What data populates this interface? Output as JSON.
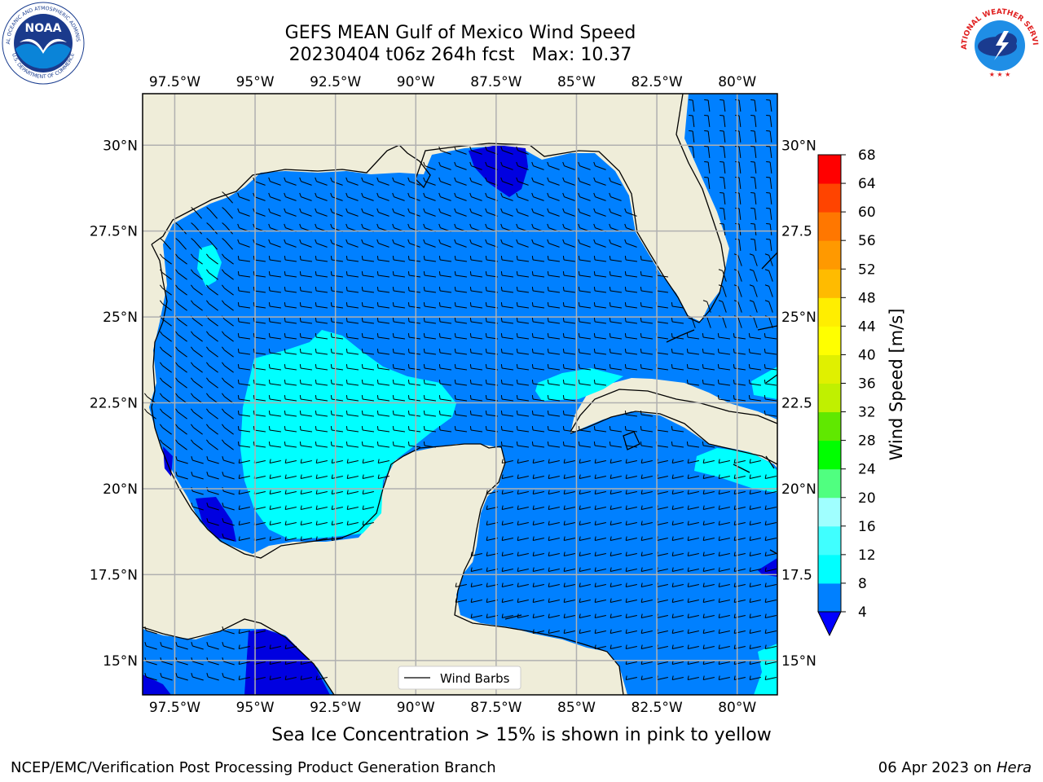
{
  "header": {
    "title_line1": "GEFS MEAN Gulf of Mexico Wind Speed",
    "title_line2": "20230404 t06z 264h fcst   Max: 10.37"
  },
  "logos": {
    "left": {
      "name": "noaa-logo",
      "text": "NOAA",
      "ring_top": "NATIONAL OCEANIC AND ATMOSPHERIC ADMINISTRATION",
      "ring_bottom": "U.S. DEPARTMENT OF COMMERCE"
    },
    "right": {
      "name": "nws-logo",
      "ring_top": "NATIONAL WEATHER SERVICE"
    }
  },
  "map": {
    "lon_range": [
      -98.5,
      -78.75
    ],
    "lat_range": [
      14,
      31.5
    ],
    "lon_ticks": [
      {
        "value": -97.5,
        "label": "97.5°W"
      },
      {
        "value": -95,
        "label": "95°W"
      },
      {
        "value": -92.5,
        "label": "92.5°W"
      },
      {
        "value": -90,
        "label": "90°W"
      },
      {
        "value": -87.5,
        "label": "87.5°W"
      },
      {
        "value": -85,
        "label": "85°W"
      },
      {
        "value": -82.5,
        "label": "82.5°W"
      },
      {
        "value": -80,
        "label": "80°W"
      }
    ],
    "lat_ticks": [
      {
        "value": 30,
        "label": "30°N"
      },
      {
        "value": 27.5,
        "label": "27.5°N"
      },
      {
        "value": 25,
        "label": "25°N"
      },
      {
        "value": 22.5,
        "label": "22.5°N"
      },
      {
        "value": 20,
        "label": "20°N"
      },
      {
        "value": 17.5,
        "label": "17.5°N"
      },
      {
        "value": 15,
        "label": "15°N"
      }
    ],
    "right_lat_labels": [
      "30°N",
      "27.5",
      "25°N",
      "22.5",
      "20°N",
      "17.5",
      "15°N"
    ],
    "colors": {
      "land": "#efedd9",
      "band_4_8": "#0080ff",
      "band_8_12": "#00ffff",
      "band_below_4": "#0000e0",
      "grid": "#b0b0b0",
      "coast": "#000000"
    },
    "legend": {
      "label": "Wind Barbs",
      "placement": "bottom-center"
    }
  },
  "colorbar": {
    "label": "Wind Speed [m/s]",
    "ticks": [
      "4",
      "8",
      "12",
      "16",
      "20",
      "24",
      "28",
      "32",
      "36",
      "40",
      "44",
      "48",
      "52",
      "56",
      "60",
      "64",
      "68"
    ],
    "colors": [
      "#0080ff",
      "#00ffff",
      "#40ffff",
      "#a0ffff",
      "#50ff80",
      "#00ff00",
      "#60e800",
      "#c0f000",
      "#e0f000",
      "#ffff00",
      "#ffee00",
      "#ffbb00",
      "#ff9900",
      "#ff7700",
      "#ff4400",
      "#ff0000"
    ],
    "underflow_color": "#0000ff"
  },
  "footer": {
    "note": "Sea Ice Concentration > 15% is shown in pink to yellow",
    "credit": "NCEP/EMC/Verification Post Processing Product Generation Branch",
    "date_prefix": "06 Apr 2023 on ",
    "host": "Hera"
  }
}
